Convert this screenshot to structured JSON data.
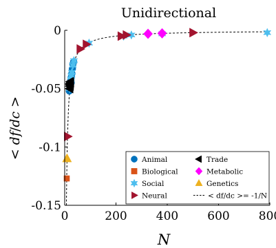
{
  "chart_data": {
    "type": "scatter",
    "title": "Unidirectional",
    "xlabel": "N",
    "ylabel": "< df/dc >",
    "xlim": [
      0,
      800
    ],
    "ylim": [
      -0.15,
      0
    ],
    "xticks": [
      0,
      200,
      400,
      600,
      800
    ],
    "yticks": [
      0,
      -0.05,
      -0.1,
      -0.15
    ],
    "xtick_labels": [
      "0",
      "200",
      "400",
      "600",
      "800"
    ],
    "ytick_labels": [
      "0",
      "-0.05",
      "-0.1",
      "-0.15"
    ],
    "grid": false,
    "legend_position": "bottom-right",
    "series": [
      {
        "name": "Animal",
        "marker": "circle",
        "color": "#0072BD",
        "points": [
          [
            22,
            -0.047
          ],
          [
            24,
            -0.043
          ],
          [
            26,
            -0.04
          ],
          [
            28,
            -0.037
          ],
          [
            30,
            -0.033
          ],
          [
            32,
            -0.029
          ],
          [
            35,
            -0.027
          ],
          [
            20,
            -0.05
          ],
          [
            18,
            -0.052
          ],
          [
            25,
            -0.045
          ]
        ]
      },
      {
        "name": "Biological",
        "marker": "square",
        "color": "#D95319",
        "points": [
          [
            8,
            -0.127
          ]
        ]
      },
      {
        "name": "Social",
        "marker": "hexagram",
        "color": "#4DBEEE",
        "points": [
          [
            20,
            -0.05
          ],
          [
            22,
            -0.046
          ],
          [
            24,
            -0.042
          ],
          [
            26,
            -0.039
          ],
          [
            28,
            -0.036
          ],
          [
            32,
            -0.03
          ],
          [
            36,
            -0.026
          ],
          [
            95,
            -0.011
          ],
          [
            230,
            -0.005
          ],
          [
            260,
            -0.004
          ],
          [
            380,
            -0.003
          ],
          [
            790,
            -0.002
          ]
        ]
      },
      {
        "name": "Neural",
        "marker": "triangle-right",
        "color": "#A2142F",
        "points": [
          [
            11,
            -0.091
          ],
          [
            60,
            -0.016
          ],
          [
            84,
            -0.012
          ],
          [
            220,
            -0.005
          ],
          [
            240,
            -0.004
          ],
          [
            500,
            -0.002
          ]
        ]
      },
      {
        "name": "Trade",
        "marker": "triangle-left",
        "color": "#000000",
        "points": [
          [
            20,
            -0.05
          ],
          [
            21,
            -0.048
          ],
          [
            22,
            -0.047
          ],
          [
            20,
            -0.046
          ],
          [
            23,
            -0.045
          ],
          [
            22,
            -0.044
          ]
        ]
      },
      {
        "name": "Metabolic",
        "marker": "diamond",
        "color": "#FF00FF",
        "points": [
          [
            325,
            -0.003
          ],
          [
            380,
            -0.0026
          ]
        ]
      },
      {
        "name": "Genetics",
        "marker": "triangle-up",
        "color": "#EDB120",
        "points": [
          [
            9,
            -0.11
          ]
        ]
      }
    ],
    "reference_curve": {
      "name": "< df/dc >= -1/N",
      "style": "dashed",
      "color": "#000000",
      "formula": "-1/N"
    }
  }
}
